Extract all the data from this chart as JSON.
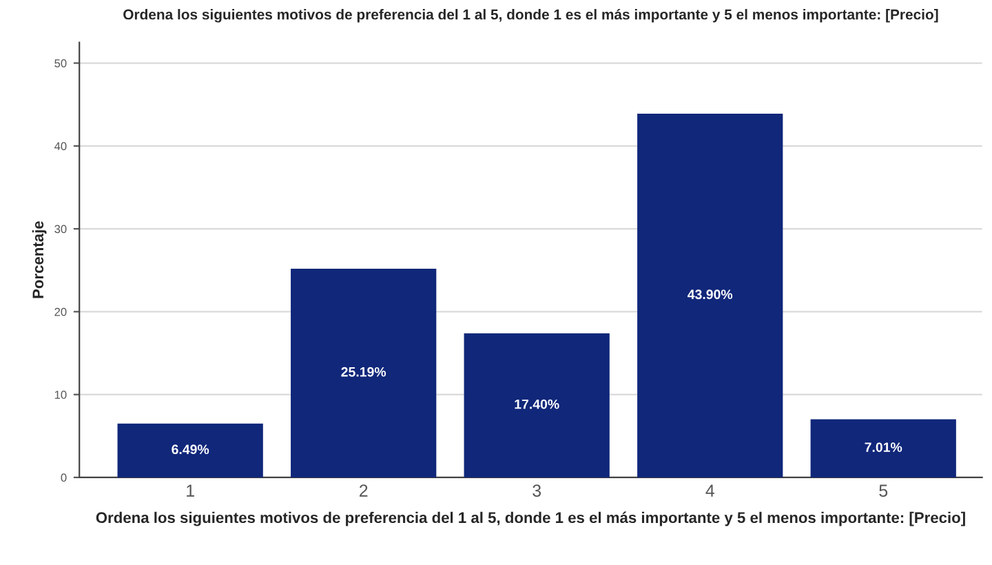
{
  "chart_data": {
    "type": "bar",
    "title": "Ordena los siguientes motivos de preferencia del 1 al 5, donde 1 es el más importante y 5 el menos importante: [Precio]",
    "xlabel": "Ordena los siguientes motivos de preferencia del 1 al 5, donde 1 es el más importante y 5 el menos importante: [Precio]",
    "ylabel": "Porcentaje",
    "categories": [
      "1",
      "2",
      "3",
      "4",
      "5"
    ],
    "values": [
      6.49,
      25.19,
      17.4,
      43.9,
      7.01
    ],
    "value_labels": [
      "6.49%",
      "25.19%",
      "17.40%",
      "43.90%",
      "7.01%"
    ],
    "color": "#10277a",
    "ylim": [
      0,
      52.5
    ],
    "yticks": [
      0,
      10,
      20,
      30,
      40,
      50
    ],
    "grid": "y"
  }
}
